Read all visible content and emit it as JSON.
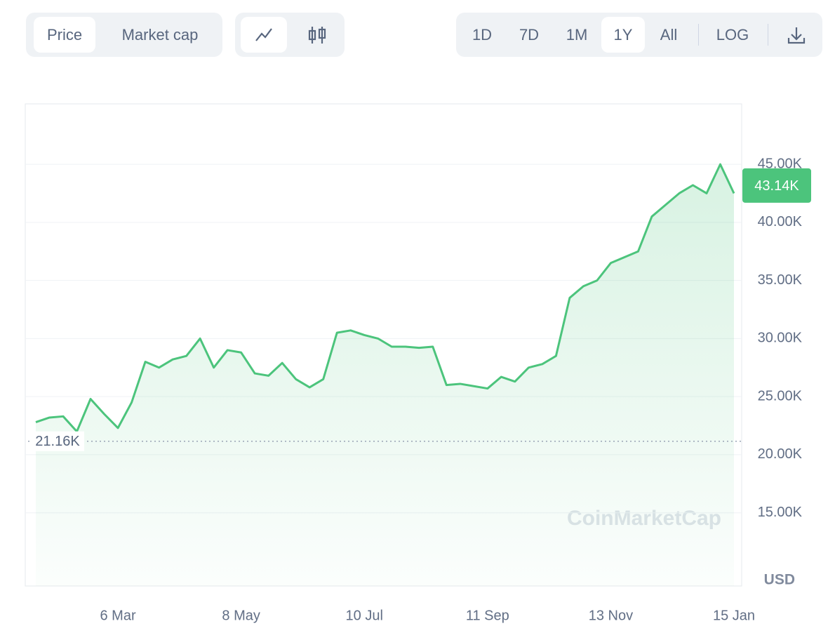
{
  "controls": {
    "metric": [
      "Price",
      "Market cap"
    ],
    "ranges": [
      "1D",
      "7D",
      "1M",
      "1Y",
      "All"
    ],
    "scale": "LOG"
  },
  "chart_data": {
    "type": "line",
    "x": [
      "23 Jan",
      "30 Jan",
      "6 Feb",
      "13 Feb",
      "20 Feb",
      "27 Feb",
      "6 Mar",
      "13 Mar",
      "20 Mar",
      "27 Mar",
      "3 Apr",
      "10 Apr",
      "17 Apr",
      "24 Apr",
      "1 May",
      "8 May",
      "15 May",
      "22 May",
      "29 May",
      "5 Jun",
      "12 Jun",
      "19 Jun",
      "26 Jun",
      "3 Jul",
      "10 Jul",
      "17 Jul",
      "24 Jul",
      "31 Jul",
      "7 Aug",
      "14 Aug",
      "21 Aug",
      "28 Aug",
      "4 Sep",
      "11 Sep",
      "18 Sep",
      "25 Sep",
      "2 Oct",
      "9 Oct",
      "16 Oct",
      "23 Oct",
      "30 Oct",
      "6 Nov",
      "13 Nov",
      "20 Nov",
      "27 Nov",
      "4 Dec",
      "11 Dec",
      "18 Dec",
      "25 Dec",
      "1 Jan",
      "8 Jan",
      "15 Jan"
    ],
    "series": [
      {
        "color": "#4cc47c",
        "values": [
          22800,
          23200,
          23300,
          22000,
          24800,
          23500,
          22300,
          24500,
          28000,
          27500,
          28200,
          28500,
          30000,
          27500,
          29000,
          28800,
          27000,
          26800,
          27900,
          26500,
          25800,
          26500,
          30500,
          30700,
          30300,
          30000,
          29300,
          29300,
          29200,
          29300,
          26000,
          26100,
          25900,
          25700,
          26700,
          26300,
          27500,
          27800,
          28500,
          33500,
          34500,
          35000,
          36500,
          37000,
          37500,
          40500,
          41500,
          42500,
          43200,
          42500,
          45000,
          42500
        ]
      }
    ],
    "xticks": [
      "6 Mar",
      "8 May",
      "10 Jul",
      "11 Sep",
      "13 Nov",
      "15 Jan"
    ],
    "ylim": [
      8700,
      50200
    ],
    "yticks": [
      {
        "value": 15000,
        "label": "15.00K"
      },
      {
        "value": 20000,
        "label": "20.00K"
      },
      {
        "value": 25000,
        "label": "25.00K"
      },
      {
        "value": 30000,
        "label": "30.00K"
      },
      {
        "value": 35000,
        "label": "35.00K"
      },
      {
        "value": 40000,
        "label": "40.00K"
      },
      {
        "value": 45000,
        "label": "45.00K"
      }
    ],
    "y_unit": "USD",
    "low_marker": {
      "value": 21160,
      "label": "21.16K"
    },
    "current_price": {
      "value": 43140,
      "label": "43.14K"
    },
    "watermark": "CoinMarketCap",
    "grid": true
  }
}
